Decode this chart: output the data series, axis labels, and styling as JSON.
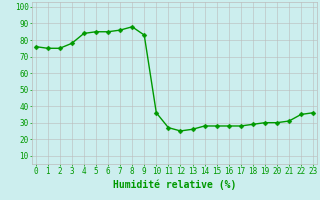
{
  "x": [
    0,
    1,
    2,
    3,
    4,
    5,
    6,
    7,
    8,
    9,
    10,
    11,
    12,
    13,
    14,
    15,
    16,
    17,
    18,
    19,
    20,
    21,
    22,
    23
  ],
  "y": [
    76,
    75,
    75,
    78,
    84,
    85,
    85,
    86,
    88,
    83,
    36,
    27,
    25,
    26,
    28,
    28,
    28,
    28,
    29,
    30,
    30,
    31,
    35,
    36
  ],
  "line_color": "#009900",
  "marker_color": "#009900",
  "bg_color": "#cceeee",
  "grid_color": "#bbbbbb",
  "xlabel": "Humidité relative (%)",
  "xlabel_color": "#009900",
  "ylabel_ticks": [
    10,
    20,
    30,
    40,
    50,
    60,
    70,
    80,
    90,
    100
  ],
  "ylim": [
    5,
    103
  ],
  "xlim": [
    -0.3,
    23.3
  ],
  "tick_color": "#009900",
  "tick_fontsize": 5.5,
  "xlabel_fontsize": 7,
  "linewidth": 1.0,
  "markersize": 2.5
}
